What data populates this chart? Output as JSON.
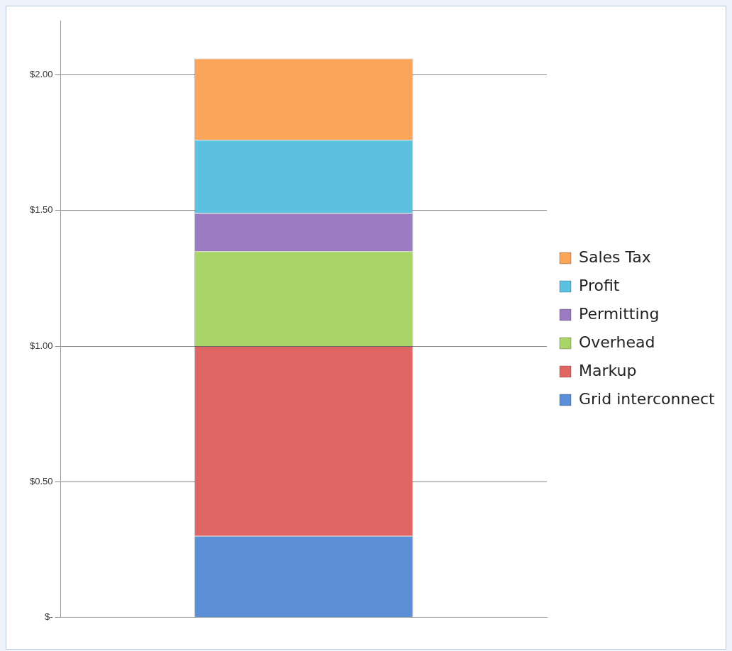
{
  "chart_data": {
    "type": "bar",
    "stacked": true,
    "categories": [
      null
    ],
    "series": [
      {
        "name": "Grid interconnect",
        "color": "#5b8fd6",
        "values": [
          0.3
        ]
      },
      {
        "name": "Markup",
        "color": "#e06666",
        "values": [
          0.7
        ]
      },
      {
        "name": "Overhead",
        "color": "#a8d468",
        "values": [
          0.35
        ]
      },
      {
        "name": "Permitting",
        "color": "#9b7bc2",
        "values": [
          0.14
        ]
      },
      {
        "name": "Profit",
        "color": "#5cc0e0",
        "values": [
          0.27
        ]
      },
      {
        "name": "Sales Tax",
        "color": "#fba55a",
        "values": [
          0.3
        ]
      }
    ],
    "ylim": [
      0,
      2.2
    ],
    "yticks": [
      {
        "value": 0,
        "label": "$-"
      },
      {
        "value": 0.5,
        "label": "$0.50"
      },
      {
        "value": 1,
        "label": "$1.00"
      },
      {
        "value": 1.5,
        "label": "$1.50"
      },
      {
        "value": 2,
        "label": "$2.00"
      }
    ],
    "grid": "y",
    "legend": "right"
  }
}
